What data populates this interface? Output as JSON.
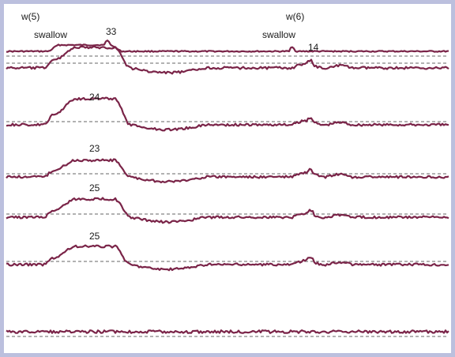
{
  "chart_data": {
    "type": "line",
    "title": "",
    "xlabel": "",
    "ylabel": "",
    "grid": false,
    "line_color": "#7a2448",
    "baseline_color": "#333333",
    "annotations": {
      "swallow_1_marker": "w(5)",
      "swallow_1_label": "swallow",
      "swallow_2_marker": "w(6)",
      "swallow_2_label": "swallow"
    },
    "channels": [
      {
        "peak_label": "33",
        "peak_value": 33
      },
      {
        "peak_label": "14",
        "peak_value": 14
      },
      {
        "peak_label": "24",
        "peak_value": 24
      },
      {
        "peak_label": "23",
        "peak_value": 23
      },
      {
        "peak_label": "25",
        "peak_value": 25
      },
      {
        "peak_label": "25",
        "peak_value": 25
      },
      {
        "peak_label": "",
        "peak_value": null
      }
    ]
  }
}
